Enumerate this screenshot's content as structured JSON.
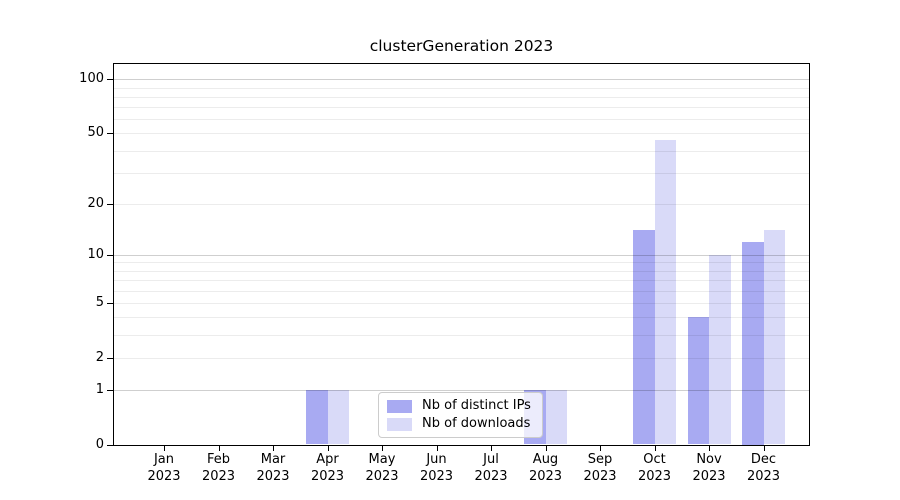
{
  "title": "clusterGeneration 2023",
  "colors": {
    "distinct_ips_bar": "#a8aaf2",
    "downloads_bar": "#d9daf8",
    "axis_line": "#000000",
    "legend_border": "#cccccc"
  },
  "legend": {
    "items": [
      {
        "label": "Nb of distinct IPs",
        "series_key": "distinct_ips"
      },
      {
        "label": "Nb of downloads",
        "series_key": "downloads"
      }
    ]
  },
  "y_axis": {
    "tick_labels": [
      "100",
      "50",
      "20",
      "10",
      "5",
      "2",
      "1",
      "0"
    ],
    "tick_values": [
      100,
      50,
      20,
      10,
      5,
      2,
      1,
      0
    ],
    "major_grid_values": [
      1,
      10,
      100
    ],
    "minor_grid_values": [
      2,
      3,
      4,
      5,
      6,
      7,
      8,
      9,
      20,
      30,
      40,
      50,
      60,
      70,
      80,
      90
    ]
  },
  "x_axis": {
    "months": [
      "Jan",
      "Feb",
      "Mar",
      "Apr",
      "May",
      "Jun",
      "Jul",
      "Aug",
      "Sep",
      "Oct",
      "Nov",
      "Dec"
    ],
    "year": "2023"
  },
  "chart_data": {
    "type": "bar",
    "title": "clusterGeneration 2023",
    "xlabel": "",
    "ylabel": "",
    "categories": [
      "Jan 2023",
      "Feb 2023",
      "Mar 2023",
      "Apr 2023",
      "May 2023",
      "Jun 2023",
      "Jul 2023",
      "Aug 2023",
      "Sep 2023",
      "Oct 2023",
      "Nov 2023",
      "Dec 2023"
    ],
    "series": [
      {
        "name": "Nb of distinct IPs",
        "color": "#a8aaf2",
        "values": [
          0,
          0,
          0,
          1,
          0,
          0,
          0,
          1,
          0,
          14,
          4,
          12
        ]
      },
      {
        "name": "Nb of downloads",
        "color": "#d9daf8",
        "values": [
          0,
          0,
          0,
          1,
          0,
          0,
          0,
          1,
          0,
          46,
          10,
          14
        ]
      }
    ],
    "yscale": "log10(value+1)",
    "yticks": [
      0,
      1,
      2,
      5,
      10,
      20,
      50,
      100
    ],
    "ylim": [
      0,
      124
    ],
    "grid": "on",
    "legend_position": "inside lower-center"
  }
}
